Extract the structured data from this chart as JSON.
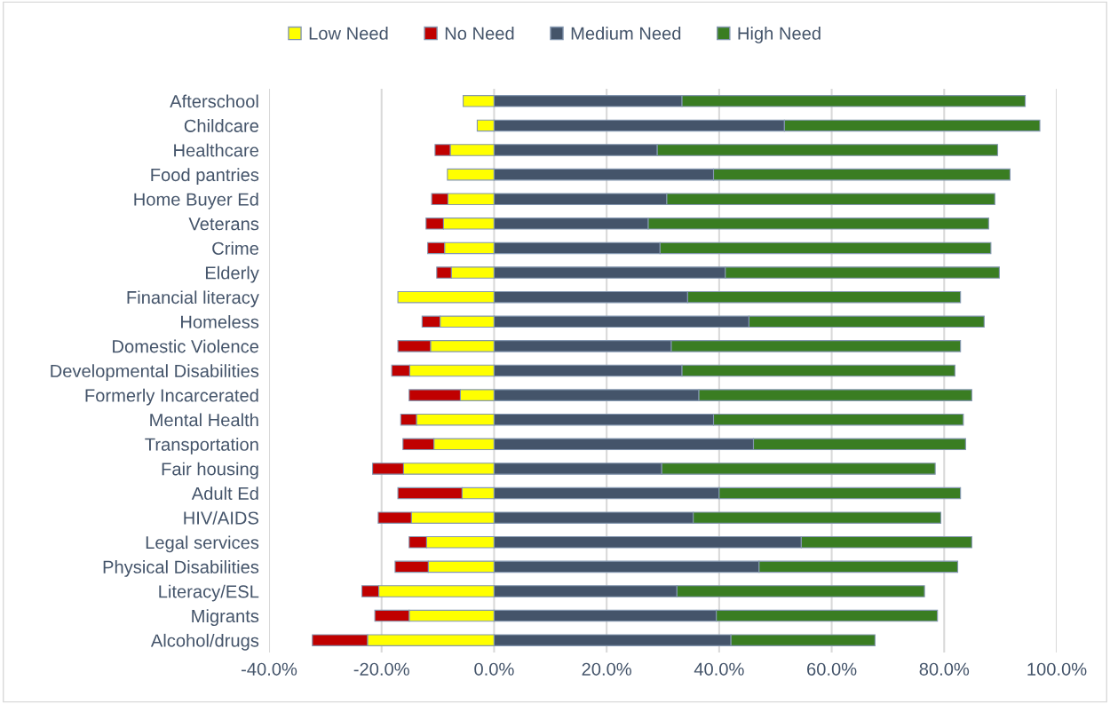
{
  "chart_data": {
    "type": "bar",
    "orientation": "horizontal",
    "stacked": true,
    "categories": [
      "Afterschool",
      "Childcare",
      "Healthcare",
      "Food pantries",
      "Home Buyer Ed",
      "Veterans",
      "Crime",
      "Elderly",
      "Financial literacy",
      "Homeless",
      "Domestic Violence",
      "Developmental Disabilities",
      "Formerly Incarcerated",
      "Mental Health",
      "Transportation",
      "Fair housing",
      "Adult Ed",
      "HIV/AIDS",
      "Legal services",
      "Physical Disabilities",
      "Literacy/ESL",
      "Migrants",
      "Alcohol/drugs"
    ],
    "series": [
      {
        "name": "Low Need",
        "color": "#ffff00",
        "values": [
          -5.5,
          -3.0,
          -7.8,
          -8.3,
          -8.2,
          -9.0,
          -8.8,
          -7.6,
          -17.1,
          -9.6,
          -11.3,
          -15.0,
          -6.0,
          -13.8,
          -10.7,
          -16.1,
          -5.7,
          -14.7,
          -12.0,
          -11.7,
          -20.5,
          -15.1,
          -22.5
        ]
      },
      {
        "name": "No Need",
        "color": "#c00000",
        "values": [
          null,
          null,
          -2.7,
          null,
          -2.9,
          -3.1,
          -3.0,
          -2.6,
          null,
          -3.2,
          -5.8,
          -3.2,
          -9.1,
          -2.8,
          -5.5,
          -5.5,
          -11.4,
          -5.9,
          -3.1,
          -5.9,
          -3.0,
          -6.1,
          -9.8
        ]
      },
      {
        "name": "Medium Need",
        "color": "#44546a",
        "values": [
          33.4,
          51.6,
          29.0,
          39.0,
          30.7,
          27.4,
          29.5,
          41.1,
          34.4,
          45.3,
          31.5,
          33.4,
          36.4,
          39.0,
          46.1,
          29.8,
          40.0,
          35.4,
          54.6,
          47.1,
          32.5,
          39.5,
          42.1
        ]
      },
      {
        "name": "High Need",
        "color": "#3a7d22",
        "values": [
          61.0,
          45.4,
          60.5,
          52.7,
          58.3,
          60.5,
          58.8,
          48.7,
          48.5,
          41.8,
          51.4,
          48.5,
          48.5,
          44.4,
          37.7,
          48.6,
          42.9,
          44.0,
          30.3,
          35.3,
          44.0,
          39.3,
          25.6
        ]
      }
    ],
    "xlim": [
      -40,
      100
    ],
    "xticks": [
      {
        "value": -40,
        "label": "-40.0%"
      },
      {
        "value": -20,
        "label": "-20.0%"
      },
      {
        "value": 0,
        "label": "0.0%"
      },
      {
        "value": 20,
        "label": "20.0%"
      },
      {
        "value": 40,
        "label": "40.0%"
      },
      {
        "value": 60,
        "label": "60.0%"
      },
      {
        "value": 80,
        "label": "80.0%"
      },
      {
        "value": 100,
        "label": "100.0%"
      }
    ],
    "grid": "x",
    "legend": "top"
  }
}
